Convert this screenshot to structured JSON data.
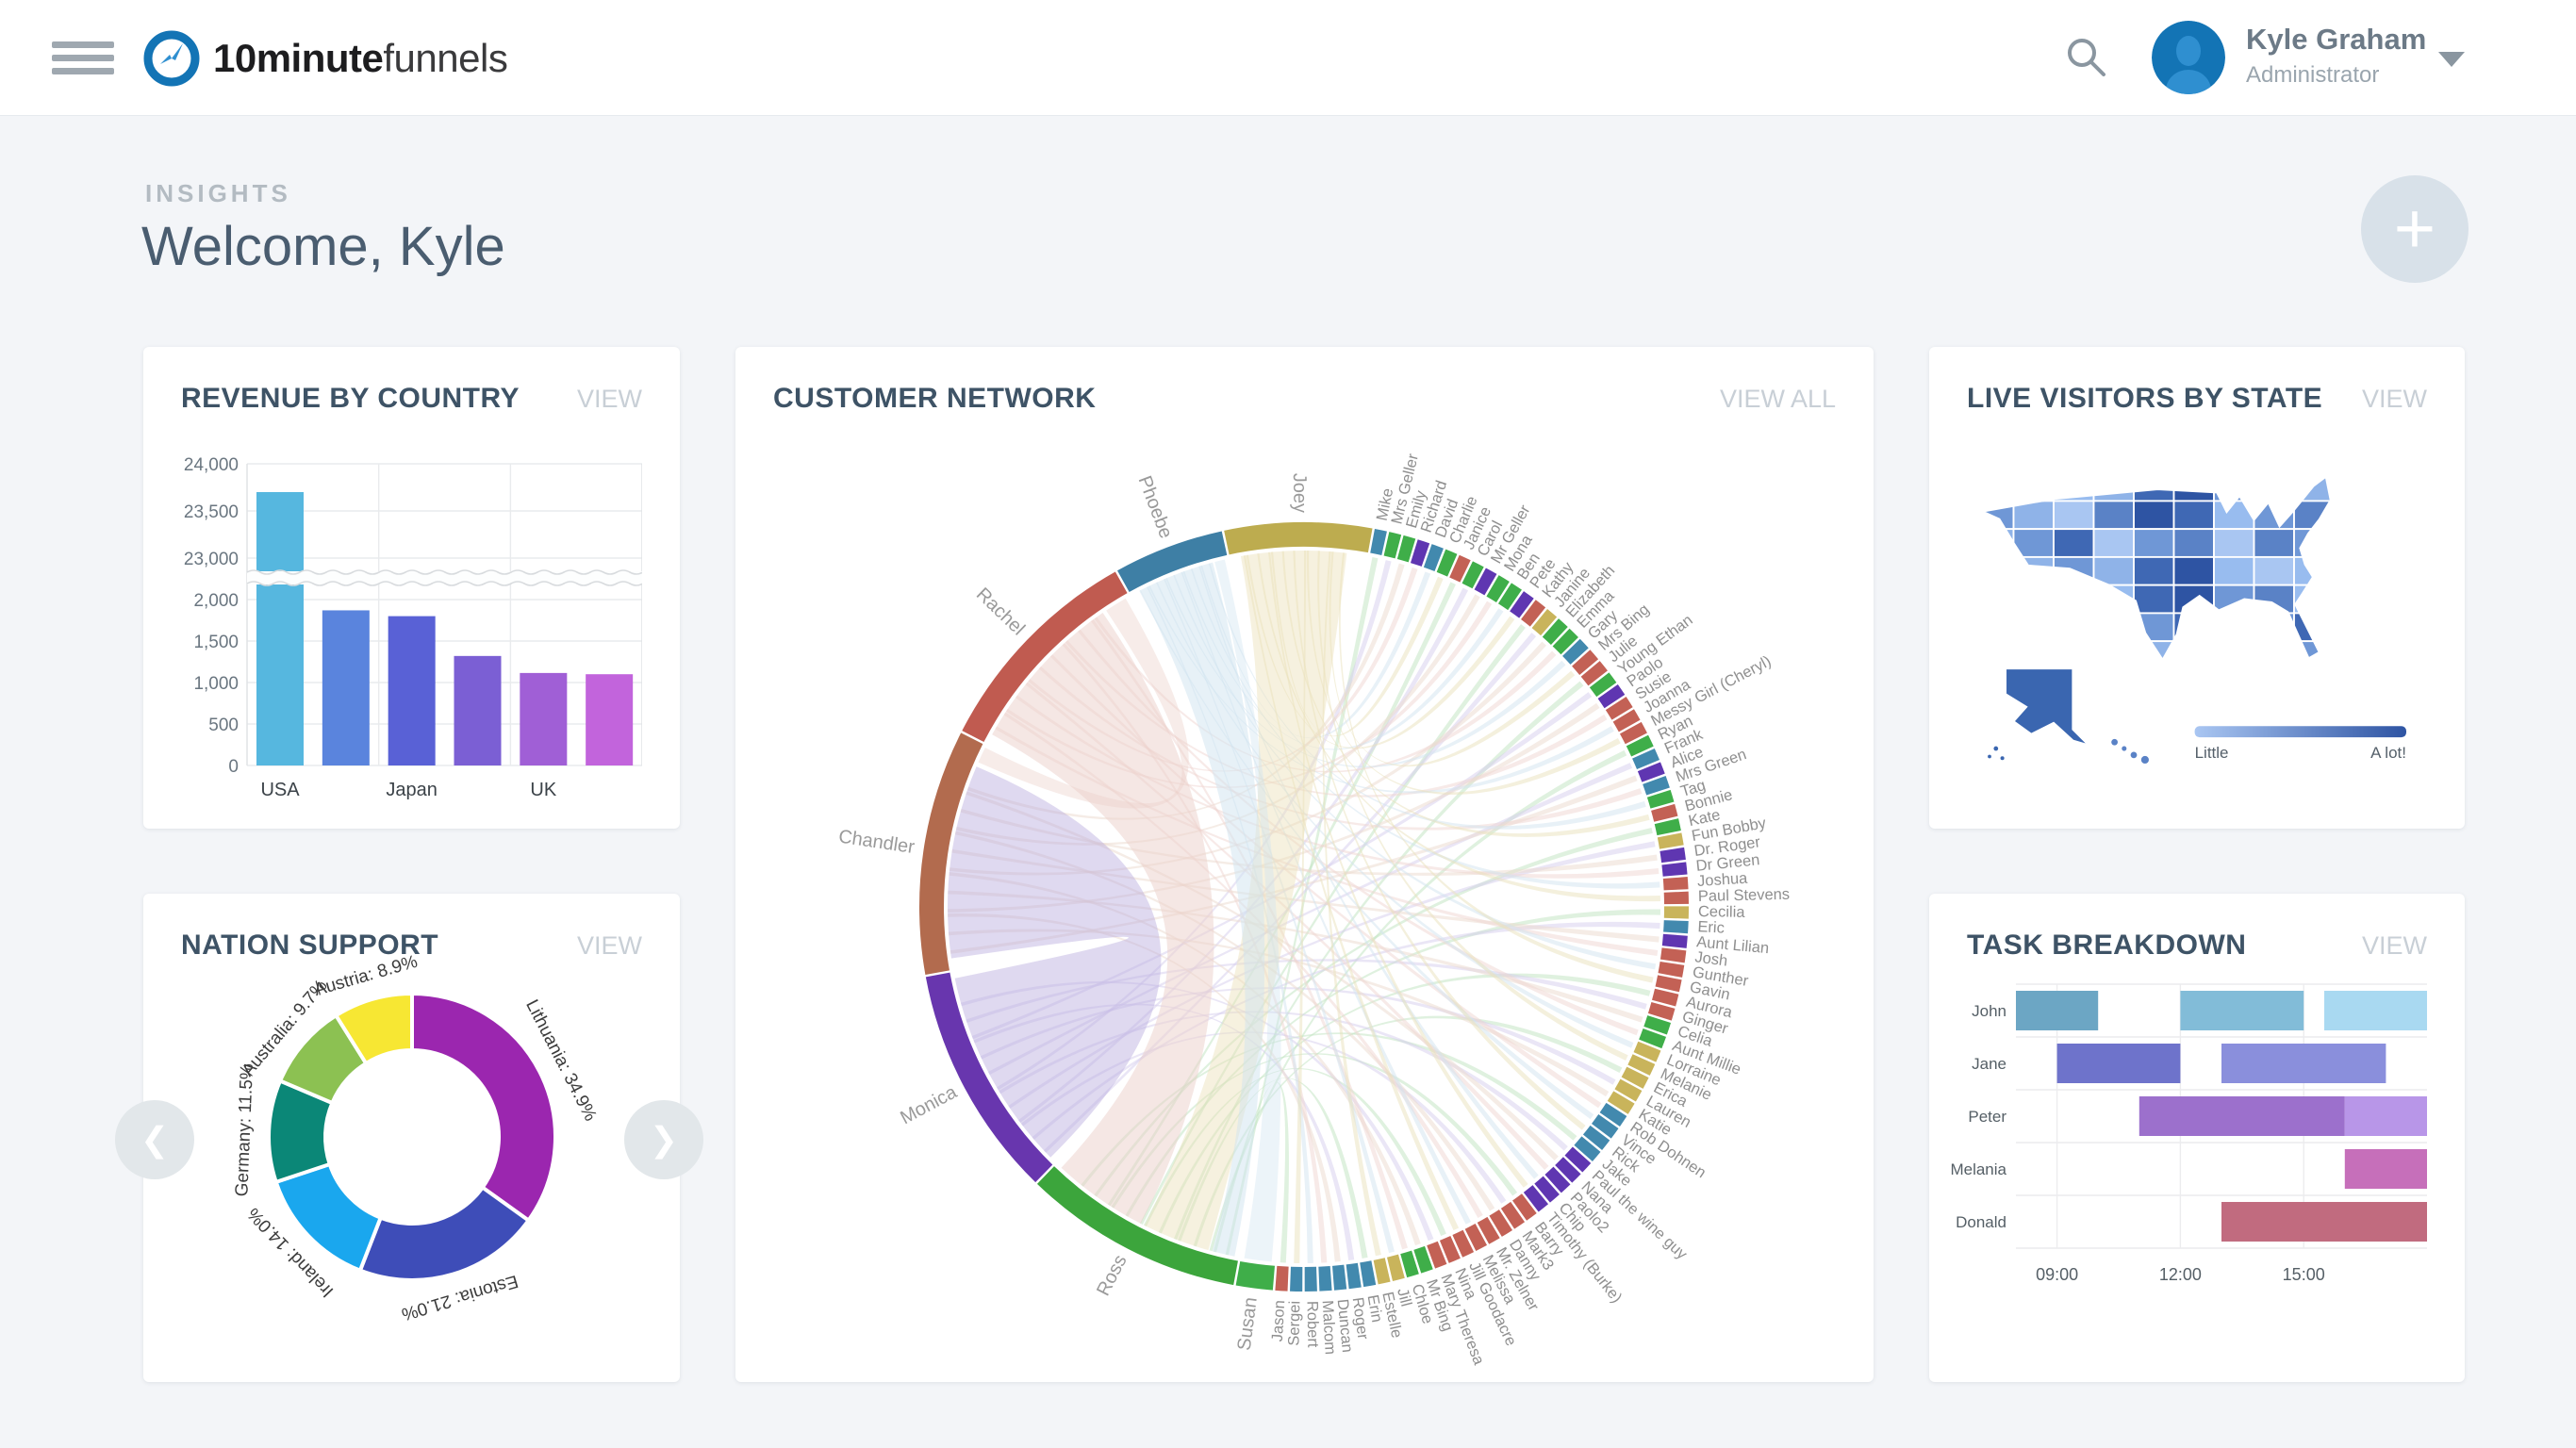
{
  "navbar": {
    "brand_bold": "10minute",
    "brand_light": "funnels",
    "user_name": "Kyle Graham",
    "user_role": "Administrator"
  },
  "header": {
    "eyebrow": "INSIGHTS",
    "title": "Welcome, Kyle",
    "fab_label": "+"
  },
  "cards": {
    "revenue": {
      "title": "REVENUE BY COUNTRY",
      "action": "VIEW"
    },
    "network": {
      "title": "CUSTOMER NETWORK",
      "action": "VIEW ALL"
    },
    "visitors": {
      "title": "LIVE VISITORS BY STATE",
      "action": "VIEW"
    },
    "nation": {
      "title": "NATION SUPPORT",
      "action": "VIEW"
    },
    "tasks": {
      "title": "TASK BREAKDOWN",
      "action": "VIEW"
    }
  },
  "chart_data": [
    {
      "id": "revenue",
      "type": "bar",
      "title": "REVENUE BY COUNTRY",
      "categories": [
        "USA",
        "",
        "Japan",
        "",
        "UK",
        ""
      ],
      "values": [
        23700,
        1870,
        1800,
        1320,
        1115,
        1100
      ],
      "bar_colors": [
        "#56B7DF",
        "#5A84DD",
        "#5961D6",
        "#7B5FD4",
        "#A05FD6",
        "#C264DC"
      ],
      "y_ticks_lower": [
        0,
        500,
        1000,
        1500,
        2000
      ],
      "y_ticks_upper": [
        23000,
        23500,
        24000
      ],
      "y_tick_labels": [
        "0",
        "500",
        "1,000",
        "1,500",
        "2,000",
        "23,000",
        "23,500",
        "24,000"
      ],
      "broken_axis": true,
      "grid": true
    },
    {
      "id": "network",
      "type": "chord",
      "title": "CUSTOMER NETWORK",
      "palette": {
        "g": "#3FAE49",
        "s": "#C36155",
        "b": "#4289AE",
        "p": "#5F36B1",
        "k": "#C9B45B",
        "joey": "#BDAC4F",
        "ross": "#3CA53C",
        "monica": "#6836AE",
        "chandler": "#B26B4E",
        "rachel": "#C05B50",
        "phoebe": "#3E7FA5"
      },
      "pastels": {
        "Ross": "#bfe3bf",
        "Monica": "#d6cdee",
        "Chandler": "#ecd9cd",
        "Rachel": "#f0d6d1",
        "Phoebe": "#d2e3ef",
        "Joey": "#eae2bc"
      },
      "segments": [
        [
          "Joey",
          "joey",
          12
        ],
        [
          "Mike",
          "b"
        ],
        [
          "Mrs Geller",
          "g"
        ],
        [
          "Emily",
          "g"
        ],
        [
          "Richard",
          "p"
        ],
        [
          "David",
          "b"
        ],
        [
          "Charlie",
          "g"
        ],
        [
          "Janice",
          "s"
        ],
        [
          "Carol",
          "g"
        ],
        [
          "Mr Geller",
          "p"
        ],
        [
          "Mona",
          "g"
        ],
        [
          "Ben",
          "g"
        ],
        [
          "Pete",
          "p"
        ],
        [
          "Kathy",
          "s"
        ],
        [
          "Janine",
          "k"
        ],
        [
          "Elizabeth",
          "g"
        ],
        [
          "Emma",
          "g"
        ],
        [
          "Gary",
          "b"
        ],
        [
          "Mrs Bing",
          "s"
        ],
        [
          "Julie",
          "s"
        ],
        [
          "Young Ethan",
          "g"
        ],
        [
          "Paolo",
          "p"
        ],
        [
          "Susie",
          "s"
        ],
        [
          "Joanna",
          "s"
        ],
        [
          "Messy Girl (Cheryl)",
          "s"
        ],
        [
          "Ryan",
          "g"
        ],
        [
          "Frank",
          "b"
        ],
        [
          "Alice",
          "p"
        ],
        [
          "Mrs Green",
          "b"
        ],
        [
          "Tag",
          "g"
        ],
        [
          "Bonnie",
          "s"
        ],
        [
          "Kate",
          "g"
        ],
        [
          "Fun Bobby",
          "k"
        ],
        [
          "Dr. Roger",
          "p"
        ],
        [
          "Dr Green",
          "p"
        ],
        [
          "Joshua",
          "s"
        ],
        [
          "Paul Stevens",
          "s"
        ],
        [
          "Cecilia",
          "k"
        ],
        [
          "Eric",
          "b"
        ],
        [
          "Aunt Lilian",
          "p"
        ],
        [
          "Josh",
          "s"
        ],
        [
          "Gunther",
          "s"
        ],
        [
          "Gavin",
          "s"
        ],
        [
          "Aurora",
          "s"
        ],
        [
          "Ginger",
          "s"
        ],
        [
          "Celia",
          "g"
        ],
        [
          "Aunt Millie",
          "g"
        ],
        [
          "Lorraine",
          "k"
        ],
        [
          "Melanie",
          "k"
        ],
        [
          "Erica",
          "k"
        ],
        [
          "Lauren",
          "k"
        ],
        [
          "Katie",
          "k"
        ],
        [
          "Rob Dohnen",
          "b"
        ],
        [
          "Vince",
          "b"
        ],
        [
          "Rick",
          "b"
        ],
        [
          "Jake",
          "b"
        ],
        [
          "Paul the wine guy",
          "p"
        ],
        [
          "Nana",
          "p"
        ],
        [
          "Paolo2",
          "p"
        ],
        [
          "Chip",
          "p"
        ],
        [
          "Timothy (Burke)",
          "p"
        ],
        [
          "Barry",
          "s"
        ],
        [
          "Mark3",
          "s"
        ],
        [
          "Danny",
          "s"
        ],
        [
          "Mr. Zelner",
          "s"
        ],
        [
          "Melissa",
          "s"
        ],
        [
          "Jill Goodacre",
          "s"
        ],
        [
          "Nina",
          "s"
        ],
        [
          "Mary Theresa",
          "s"
        ],
        [
          "Mr Bing",
          "g"
        ],
        [
          "Chloe",
          "g"
        ],
        [
          "Jill",
          "k"
        ],
        [
          "Estelle",
          "k"
        ],
        [
          "Erin",
          "b"
        ],
        [
          "Roger",
          "b"
        ],
        [
          "Duncan",
          "b"
        ],
        [
          "Malcom",
          "b"
        ],
        [
          "Robert",
          "b"
        ],
        [
          "Sergei",
          "b"
        ],
        [
          "Jason",
          "s"
        ],
        [
          "Susan",
          "g",
          3
        ],
        [
          "Ross",
          "ross",
          18
        ],
        [
          "Monica",
          "monica",
          19
        ],
        [
          "Chandler",
          "chandler",
          20
        ],
        [
          "Rachel",
          "rachel",
          18
        ],
        [
          "Phoebe",
          "phoebe",
          9
        ]
      ],
      "main_chords": [
        {
          "s": "Monica",
          "sf": [
            0.03,
            0.97
          ],
          "t": "Chandler",
          "tf": [
            0.05,
            0.9
          ],
          "c": "#b7abdd",
          "o": 0.45
        },
        {
          "s": "Rachel",
          "sf": [
            0.05,
            0.85
          ],
          "t": "Ross",
          "tf": [
            0.5,
            0.97
          ],
          "c": "#eccfc9",
          "o": 0.5
        },
        {
          "s": "Joey",
          "sf": [
            0.08,
            0.85
          ],
          "t": "Ross",
          "tf": [
            0.15,
            0.48
          ],
          "c": "#eadfb7",
          "o": 0.45
        },
        {
          "s": "Phoebe",
          "sf": [
            0.1,
            0.85
          ],
          "t": "Ross",
          "tf": [
            0.02,
            0.13
          ],
          "c": "#cfe3ef",
          "o": 0.5
        },
        {
          "s": "Rachel",
          "sf": [
            0.87,
            0.98
          ],
          "t": "Chandler",
          "tf": [
            0.92,
            0.99
          ],
          "c": "#eccfc9",
          "o": 0.4
        },
        {
          "s": "Phoebe",
          "sf": [
            0.87,
            0.97
          ],
          "t": "Susan",
          "tf": [
            0.1,
            0.9
          ],
          "c": "#cfe3ef",
          "o": 0.4
        }
      ]
    },
    {
      "id": "visitors",
      "type": "heatmap",
      "title": "LIVE VISITORS BY STATE",
      "legend_min": "Little",
      "legend_max": "A lot!",
      "palette": [
        "#A9C6F2",
        "#98BCEF",
        "#8FB3E8",
        "#6F97D6",
        "#5A82C6",
        "#3F68B4",
        "#2E54A3"
      ],
      "cells": [
        [
          "#7FA3DC",
          "#98BCEF",
          "#98BCEF",
          "#8FB3E8",
          "#3F68B4",
          "#2E54A3",
          "#6F97D6",
          "#5A82C6",
          "#8FB3E8",
          "#8FB3E8"
        ],
        [
          "#6F97D6",
          "#8FB3E8",
          "#A9C6F2",
          "#5A82C6",
          "#2E54A3",
          "#3F68B4",
          "#98BCEF",
          "#6F97D6",
          "#5A82C6",
          "#8FB3E8"
        ],
        [
          "#8FB3E8",
          "#6F97D6",
          "#3F68B4",
          "#A9C6F2",
          "#6F97D6",
          "#5A82C6",
          "#A9C6F2",
          "#5A82C6",
          "#6F97D6",
          "#A9C6F2"
        ],
        [
          "#8FB3E8",
          "#8FB3E8",
          "#6F97D6",
          "#8FB3E8",
          "#3F68B4",
          "#2E54A3",
          "#98BCEF",
          "#A9C6F2",
          "#98BCEF",
          "#8FB3E8"
        ],
        [
          "#A9C6F2",
          "#8FB3E8",
          "#8FB3E8",
          "#98BCEF",
          "#3F68B4",
          "#2E54A3",
          "#6F97D6",
          "#5A82C6",
          "#98BCEF",
          "#A9C6F2"
        ],
        [
          "#98BCEF",
          "#A9C6F2",
          "#8FB3E8",
          "#A9C6F2",
          "#6F97D6",
          "#3F68B4",
          "#5A82C6",
          "#6F97D6",
          "#3F68B4",
          "#8FB3E8"
        ],
        [
          "#A9C6F2",
          "#98BCEF",
          "#A9C6F2",
          "#98BCEF",
          "#8FB3E8",
          "#5A82C6",
          "#2E54A3",
          "#3F68B4",
          "#6F97D6",
          "#98BCEF"
        ]
      ],
      "alaska_color": "#3A66B0",
      "hawaii_color": "#5A82C6"
    },
    {
      "id": "nation",
      "type": "pie",
      "title": "NATION SUPPORT",
      "slices": [
        {
          "label": "Lithuania",
          "value": 34.9,
          "color": "#9B26AF"
        },
        {
          "label": "Estonia",
          "value": 21.0,
          "color": "#3E4DB8"
        },
        {
          "label": "Ireland",
          "value": 14.0,
          "color": "#1AA7EE"
        },
        {
          "label": "Germany",
          "value": 11.5,
          "color": "#0B8777"
        },
        {
          "label": "Australia",
          "value": 9.7,
          "color": "#8CC152"
        },
        {
          "label": "Austria",
          "value": 8.9,
          "color": "#F7E733"
        }
      ],
      "label_format": "{label}: {value}%",
      "donut": true
    },
    {
      "id": "tasks",
      "type": "bar",
      "subtype": "gantt",
      "title": "TASK BREAKDOWN",
      "x_range": [
        8,
        18
      ],
      "x_ticks": [
        9,
        12,
        15
      ],
      "x_tick_labels": [
        "09:00",
        "12:00",
        "15:00"
      ],
      "rows": [
        {
          "name": "John",
          "bars": [
            {
              "start": 8,
              "end": 10,
              "color": "#6CA6C4"
            },
            {
              "start": 12,
              "end": 15,
              "color": "#82BCD8"
            },
            {
              "start": 15.5,
              "end": 18,
              "color": "#A9D9F1"
            }
          ]
        },
        {
          "name": "Jane",
          "bars": [
            {
              "start": 9,
              "end": 12,
              "color": "#6E73CB"
            },
            {
              "start": 13,
              "end": 17,
              "color": "#8A8FDC"
            }
          ]
        },
        {
          "name": "Peter",
          "bars": [
            {
              "start": 11,
              "end": 16,
              "color": "#9C70CC"
            },
            {
              "start": 16,
              "end": 18,
              "color": "#B896E8"
            }
          ]
        },
        {
          "name": "Melania",
          "bars": [
            {
              "start": 16,
              "end": 18,
              "color": "#C66FBA"
            }
          ]
        },
        {
          "name": "Donald",
          "bars": [
            {
              "start": 13,
              "end": 18,
              "color": "#C16B7F"
            }
          ]
        }
      ]
    }
  ]
}
